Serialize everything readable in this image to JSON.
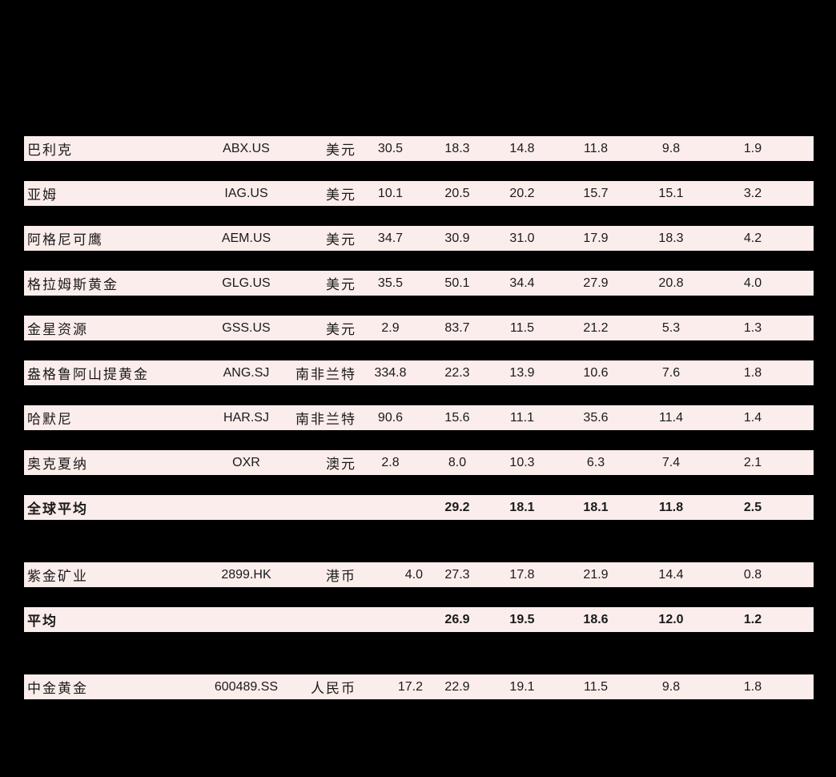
{
  "page": {
    "background_color": "#000000",
    "row_background_color": "#fbedeb",
    "text_color": "#1a1a1a"
  },
  "table": {
    "description_columns": [
      "company_name",
      "stock_code",
      "currency",
      "price",
      "metric_1",
      "metric_2",
      "metric_3",
      "metric_4",
      "metric_5"
    ],
    "rows": [
      {
        "name": "巴利克",
        "code": "ABX.US",
        "currency": "美元",
        "price": "30.5",
        "values": [
          "18.3",
          "14.8",
          "11.8",
          "9.8",
          "1.9"
        ],
        "is_summary": false
      },
      {
        "name": "亚姆",
        "code": "IAG.US",
        "currency": "美元",
        "price": "10.1",
        "values": [
          "20.5",
          "20.2",
          "15.7",
          "15.1",
          "3.2"
        ],
        "is_summary": false
      },
      {
        "name": "阿格尼可鹰",
        "code": "AEM.US",
        "currency": "美元",
        "price": "34.7",
        "values": [
          "30.9",
          "31.0",
          "17.9",
          "18.3",
          "4.2"
        ],
        "is_summary": false
      },
      {
        "name": "格拉姆斯黄金",
        "code": "GLG.US",
        "currency": "美元",
        "price": "35.5",
        "values": [
          "50.1",
          "34.4",
          "27.9",
          "20.8",
          "4.0"
        ],
        "is_summary": false
      },
      {
        "name": "金星资源",
        "code": "GSS.US",
        "currency": "美元",
        "price": "2.9",
        "values": [
          "83.7",
          "11.5",
          "21.2",
          "5.3",
          "1.3"
        ],
        "is_summary": false
      },
      {
        "name": "盎格鲁阿山提黄金",
        "code": "ANG.SJ",
        "currency": "南非兰特",
        "price": "334.8",
        "values": [
          "22.3",
          "13.9",
          "10.6",
          "7.6",
          "1.8"
        ],
        "is_summary": false
      },
      {
        "name": "哈默尼",
        "code": "HAR.SJ",
        "currency": "南非兰特",
        "price": "90.6",
        "values": [
          "15.6",
          "11.1",
          "35.6",
          "11.4",
          "1.4"
        ],
        "is_summary": false
      },
      {
        "name": "奥克夏纳",
        "code": "OXR",
        "currency": "澳元",
        "price": "2.8",
        "values": [
          "8.0",
          "10.3",
          "6.3",
          "7.4",
          "2.1"
        ],
        "is_summary": false
      },
      {
        "name": "全球平均",
        "code": "",
        "currency": "",
        "price": "",
        "values": [
          "29.2",
          "18.1",
          "18.1",
          "11.8",
          "2.5"
        ],
        "is_summary": true
      },
      {
        "name": "紫金矿业",
        "code": "2899.HK",
        "currency": "港币",
        "price": "4.0",
        "values": [
          "27.3",
          "17.8",
          "21.9",
          "14.4",
          "0.8"
        ],
        "is_summary": false
      },
      {
        "name": "平均",
        "code": "",
        "currency": "",
        "price": "",
        "values": [
          "26.9",
          "19.5",
          "18.6",
          "12.0",
          "1.2"
        ],
        "is_summary": true
      },
      {
        "name": "中金黄金",
        "code": "600489.SS",
        "currency": "人民币",
        "price": "17.2",
        "values": [
          "22.9",
          "19.1",
          "11.5",
          "9.8",
          "1.8"
        ],
        "is_summary": false
      }
    ]
  }
}
